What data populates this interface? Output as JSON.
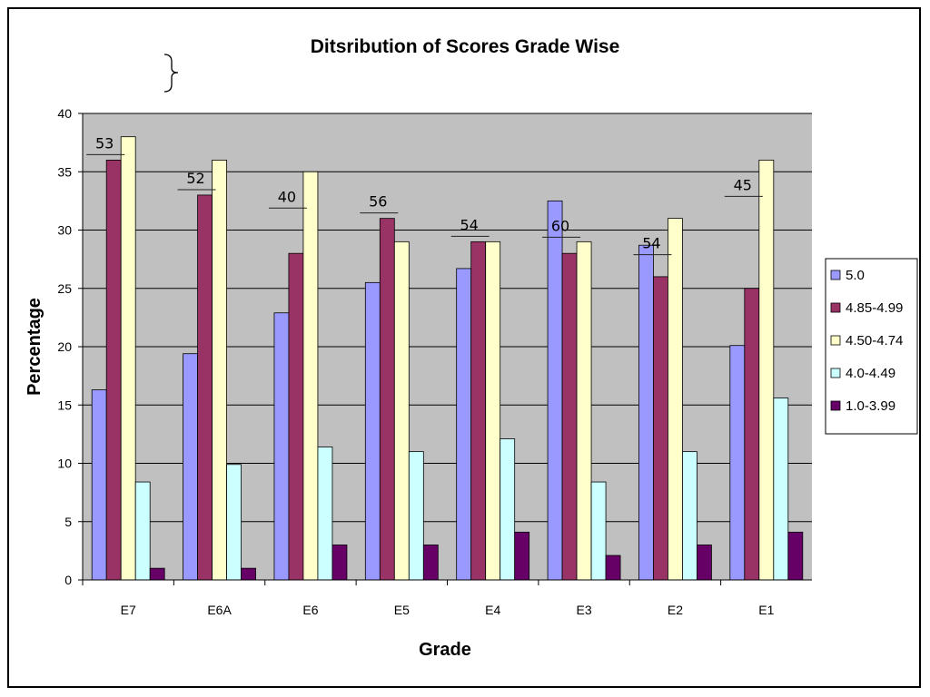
{
  "chart_data": {
    "type": "bar",
    "title": "Ditsribution of Scores Grade Wise",
    "xlabel": "Grade",
    "ylabel": "Percentage",
    "ylim": [
      0,
      40
    ],
    "yticks": [
      "0",
      "5",
      "10",
      "15",
      "20",
      "25",
      "30",
      "35",
      "40"
    ],
    "categories": [
      "E7",
      "E6A",
      "E6",
      "E5",
      "E4",
      "E3",
      "E2",
      "E1"
    ],
    "series": [
      {
        "name": "5.0",
        "color": "#9999ff",
        "values": [
          16.3,
          19.4,
          22.9,
          25.5,
          26.7,
          32.5,
          28.7,
          20.1
        ]
      },
      {
        "name": "4.85-4.99",
        "color": "#993366",
        "values": [
          36,
          33,
          28,
          31,
          29,
          28,
          26,
          25
        ]
      },
      {
        "name": "4.50-4.74",
        "color": "#ffffcc",
        "values": [
          38,
          36,
          35,
          29,
          29,
          29,
          31,
          36
        ]
      },
      {
        "name": "4.0-4.49",
        "color": "#ccffff",
        "values": [
          8.4,
          9.9,
          11.4,
          11,
          12.1,
          8.4,
          11,
          15.6
        ]
      },
      {
        "name": "1.0-3.99",
        "color": "#660066",
        "values": [
          1,
          1,
          3,
          3,
          4.1,
          2.1,
          3,
          4.1
        ]
      }
    ],
    "annotations": [
      "53",
      "52",
      "40",
      "56",
      "54",
      "60",
      "54",
      "45"
    ],
    "grid": true,
    "plot_background": "#c0c0c0",
    "legend_position": "right"
  }
}
